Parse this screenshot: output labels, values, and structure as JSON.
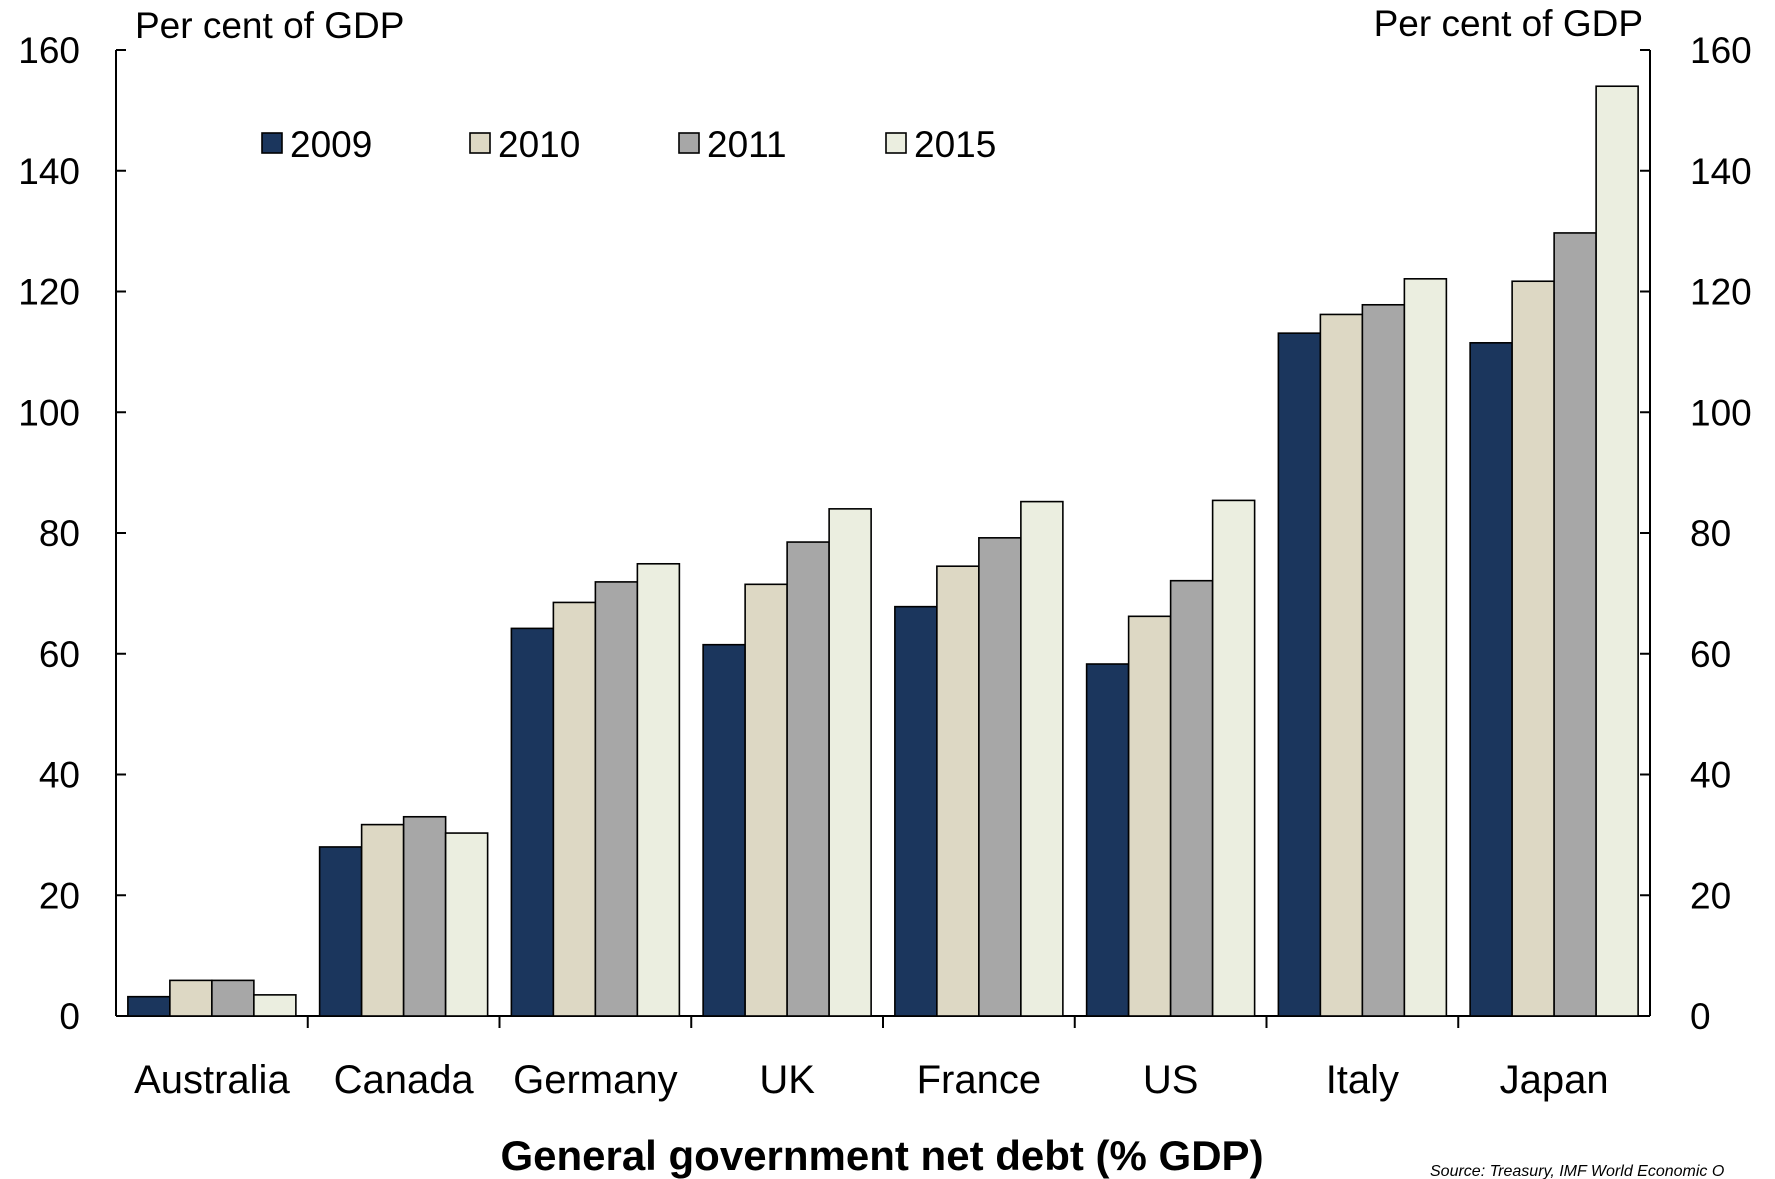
{
  "chart_data": {
    "type": "bar",
    "xlabel": "General government net debt (% GDP)",
    "ylabel_left": "Per cent of GDP",
    "ylabel_right": "Per cent of GDP",
    "ylim": [
      0,
      160
    ],
    "yticks": [
      0,
      20,
      40,
      60,
      80,
      100,
      120,
      140,
      160
    ],
    "legend_position": "top-left",
    "categories": [
      "Australia",
      "Canada",
      "Germany",
      "UK",
      "France",
      "US",
      "Italy",
      "Japan"
    ],
    "series": [
      {
        "name": "2009",
        "color": "#1b365d",
        "values": [
          3.2,
          28.0,
          64.2,
          61.5,
          67.8,
          58.3,
          113.1,
          111.5
        ]
      },
      {
        "name": "2010",
        "color": "#ddd8c4",
        "values": [
          5.9,
          31.7,
          68.5,
          71.5,
          74.5,
          66.2,
          116.2,
          121.7
        ]
      },
      {
        "name": "2011",
        "color": "#a7a7a7",
        "values": [
          5.9,
          33.0,
          71.9,
          78.5,
          79.2,
          72.1,
          117.8,
          129.7
        ]
      },
      {
        "name": "2015",
        "color": "#ebeee0",
        "values": [
          3.5,
          30.3,
          74.9,
          84.0,
          85.2,
          85.4,
          122.1,
          154.0
        ]
      }
    ],
    "source": "Source: Treasury, IMF World Economic O"
  }
}
